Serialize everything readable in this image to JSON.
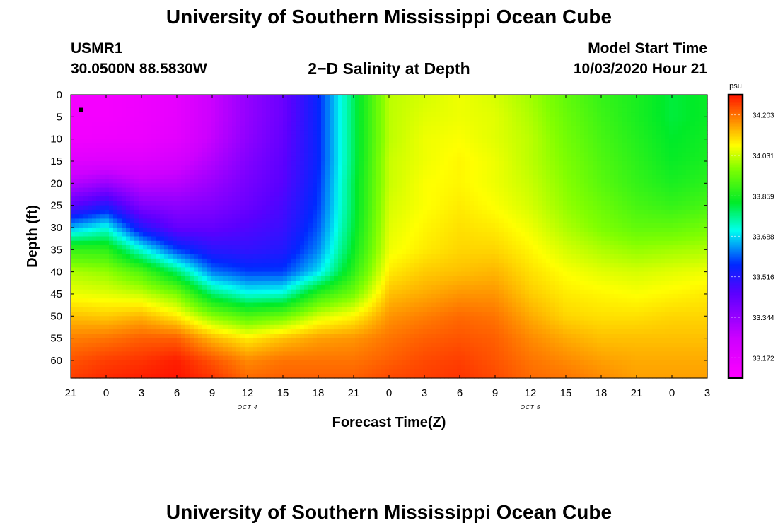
{
  "page": {
    "title_top": "University of Southern Mississippi Ocean Cube",
    "title_bottom": "University of Southern Mississippi Ocean Cube",
    "station_id": "USMR1",
    "station_coords": "30.0500N 88.5830W",
    "chart_heading": "2−D Salinity at Depth",
    "model_start_label": "Model Start Time",
    "model_start_value": "10/03/2020 Hour 21"
  },
  "chart_data": {
    "type": "heatmap",
    "title": "2−D Salinity at Depth",
    "xlabel": "Forecast Time(Z)",
    "ylabel": "Depth (ft)",
    "x_range_hours": [
      0,
      54
    ],
    "x_tick_labels": [
      "21",
      "0",
      "3",
      "6",
      "9",
      "12",
      "15",
      "18",
      "21",
      "0",
      "3",
      "6",
      "9",
      "12",
      "15",
      "18",
      "21",
      "0",
      "3"
    ],
    "x_date_labels": [
      {
        "label": "OCT 4",
        "hour": 15
      },
      {
        "label": "OCT 5",
        "hour": 39
      }
    ],
    "y_range_ft": [
      0,
      64
    ],
    "y_ticks": [
      0,
      5,
      10,
      15,
      20,
      25,
      30,
      35,
      40,
      45,
      50,
      55,
      60
    ],
    "colorbar": {
      "unit": "psu",
      "min": 33.086,
      "max": 34.289,
      "tick_values": [
        33.172,
        33.344,
        33.516,
        33.688,
        33.859,
        34.031,
        34.203
      ],
      "tick_labels": [
        "33.172",
        "33.344",
        "33.516",
        "33.688",
        "33.859",
        "34.031",
        "34.203"
      ]
    },
    "marker": {
      "hour": 0.5,
      "depth_ft": 2
    },
    "profile_hours": [
      0,
      3,
      6,
      9,
      12,
      15,
      18,
      21,
      24,
      27,
      30,
      33,
      36,
      39,
      42,
      45,
      48,
      51,
      54
    ],
    "profile_depths_ft": [
      0,
      5,
      10,
      15,
      20,
      25,
      30,
      35,
      40,
      45,
      50,
      55,
      60,
      64
    ],
    "salinity_psu": [
      [
        33.12,
        33.12,
        33.13,
        33.19,
        33.29,
        33.44,
        33.66,
        33.89,
        34.01,
        34.06,
        34.13,
        34.19,
        34.23,
        34.25
      ],
      [
        33.12,
        33.12,
        33.14,
        33.2,
        33.34,
        33.52,
        33.72,
        33.88,
        33.99,
        34.05,
        34.12,
        34.2,
        34.25,
        34.27
      ],
      [
        33.14,
        33.14,
        33.15,
        33.2,
        33.28,
        33.38,
        33.52,
        33.72,
        33.92,
        34.03,
        34.14,
        34.22,
        34.26,
        34.28
      ],
      [
        33.17,
        33.17,
        33.18,
        33.23,
        33.29,
        33.36,
        33.43,
        33.58,
        33.79,
        33.97,
        34.09,
        34.22,
        34.28,
        34.29
      ],
      [
        33.26,
        33.26,
        33.27,
        33.3,
        33.34,
        33.38,
        33.43,
        33.51,
        33.62,
        33.79,
        33.98,
        34.14,
        34.23,
        34.26
      ],
      [
        33.35,
        33.35,
        33.36,
        33.38,
        33.4,
        33.42,
        33.46,
        33.5,
        33.58,
        33.72,
        33.92,
        34.09,
        34.18,
        34.21
      ],
      [
        33.42,
        33.42,
        33.43,
        33.44,
        33.45,
        33.47,
        33.49,
        33.52,
        33.58,
        33.73,
        33.95,
        34.13,
        34.2,
        34.22
      ],
      [
        33.56,
        33.56,
        33.56,
        33.56,
        33.57,
        33.58,
        33.6,
        33.63,
        33.69,
        33.88,
        34.04,
        34.16,
        34.2,
        34.22
      ],
      [
        33.8,
        33.8,
        33.8,
        33.8,
        33.81,
        33.81,
        33.82,
        33.84,
        33.88,
        33.96,
        34.08,
        34.17,
        34.2,
        34.22
      ],
      [
        34.02,
        34.02,
        34.02,
        34.03,
        34.03,
        34.04,
        34.05,
        34.06,
        34.09,
        34.13,
        34.17,
        34.2,
        34.22,
        34.24
      ],
      [
        34.04,
        34.05,
        34.06,
        34.06,
        34.07,
        34.07,
        34.08,
        34.09,
        34.12,
        34.15,
        34.19,
        34.22,
        34.24,
        34.25
      ],
      [
        34.06,
        34.06,
        34.07,
        34.08,
        34.08,
        34.09,
        34.1,
        34.11,
        34.13,
        34.17,
        34.21,
        34.23,
        34.25,
        34.26
      ],
      [
        34.04,
        34.05,
        34.05,
        34.06,
        34.06,
        34.07,
        34.09,
        34.11,
        34.14,
        34.17,
        34.2,
        34.22,
        34.23,
        34.24
      ],
      [
        34.0,
        34.01,
        34.02,
        34.02,
        34.03,
        34.04,
        34.06,
        34.08,
        34.1,
        34.12,
        34.15,
        34.18,
        34.2,
        34.21
      ],
      [
        33.94,
        33.95,
        33.96,
        33.97,
        33.98,
        33.99,
        34.01,
        34.04,
        34.07,
        34.09,
        34.11,
        34.15,
        34.18,
        34.2
      ],
      [
        33.89,
        33.9,
        33.91,
        33.92,
        33.93,
        33.95,
        33.97,
        34.01,
        34.05,
        34.08,
        34.1,
        34.13,
        34.16,
        34.18
      ],
      [
        33.86,
        33.86,
        33.87,
        33.88,
        33.89,
        33.91,
        33.94,
        33.99,
        34.04,
        34.07,
        34.1,
        34.13,
        34.15,
        34.16
      ],
      [
        33.82,
        33.82,
        33.83,
        33.84,
        33.86,
        33.89,
        33.94,
        34.0,
        34.05,
        34.08,
        34.11,
        34.13,
        34.15,
        34.16
      ],
      [
        33.84,
        33.84,
        33.85,
        33.86,
        33.88,
        33.91,
        33.96,
        34.01,
        34.06,
        34.09,
        34.11,
        34.13,
        34.15,
        34.16
      ]
    ]
  }
}
